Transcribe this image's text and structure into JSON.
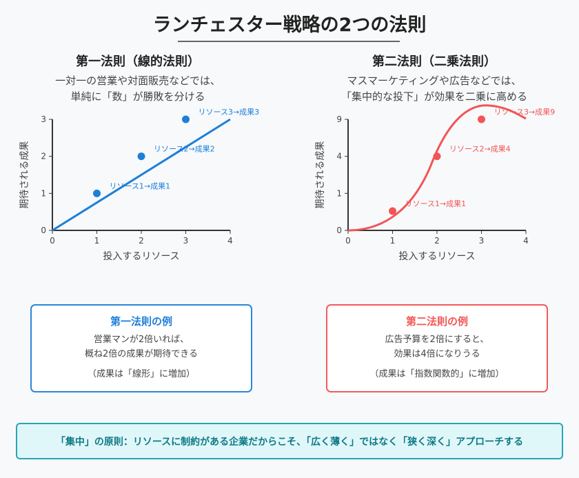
{
  "title": "ランチェスター戦略の2つの法則",
  "colors": {
    "law1": "#1e7fd8",
    "law2": "#f25555",
    "summary": "#0e7a86"
  },
  "law1": {
    "heading": "第一法則（線的法則）",
    "desc": [
      "一対一の営業や対面販売などでは、",
      "単純に「数」が勝敗を分ける"
    ],
    "example": {
      "title": "第一法則の例",
      "lines": [
        "営業マンが2倍いれば、",
        "概ね2倍の成果が期待できる"
      ],
      "note": "（成果は「線形」に増加）"
    }
  },
  "law2": {
    "heading": "第二法則（二乗法則）",
    "desc": [
      "マスマーケティングや広告などでは、",
      "「集中的な投下」が効果を二乗に高める"
    ],
    "example": {
      "title": "第二法則の例",
      "lines": [
        "広告予算を2倍にすると、",
        "効果は4倍になりうる"
      ],
      "note": "（成果は「指数関数的」に増加）"
    }
  },
  "summary": "「集中」の原則：リソースに制約がある企業だからこそ、「広く薄く」ではなく「狭く深く」アプローチする",
  "chart_data": [
    {
      "type": "scatter",
      "xlabel": "投入するリソース",
      "ylabel": "期待される成果",
      "xlim": [
        0,
        4
      ],
      "ylim": [
        0,
        3
      ],
      "xticks": [
        "0",
        "1",
        "2",
        "3",
        "4"
      ],
      "yticks": [
        "0",
        "1",
        "2",
        "3"
      ],
      "points": [
        {
          "x": 1,
          "y": 1,
          "label": "リソース1→成果1"
        },
        {
          "x": 2,
          "y": 2,
          "label": "リソース2→成果2"
        },
        {
          "x": 3,
          "y": 3,
          "label": "リソース3→成果3"
        }
      ],
      "line": {
        "type": "linear",
        "from": [
          0,
          0
        ],
        "to": [
          4,
          3
        ]
      },
      "grid": false
    },
    {
      "type": "scatter",
      "xlabel": "投入するリソース",
      "ylabel": "期待される成果",
      "xlim": [
        0,
        4
      ],
      "ylim": [
        0,
        9
      ],
      "xticks": [
        "0",
        "1",
        "2",
        "3",
        "4"
      ],
      "yticks": [
        "0",
        "1",
        "4",
        "9"
      ],
      "points": [
        {
          "x": 1,
          "y": 1,
          "label": "リソース1→成果1"
        },
        {
          "x": 2,
          "y": 4,
          "label": "リソース2→成果4"
        },
        {
          "x": 3,
          "y": 9,
          "label": "リソース3→成果9"
        }
      ],
      "line": {
        "type": "curve"
      },
      "grid": false
    }
  ]
}
